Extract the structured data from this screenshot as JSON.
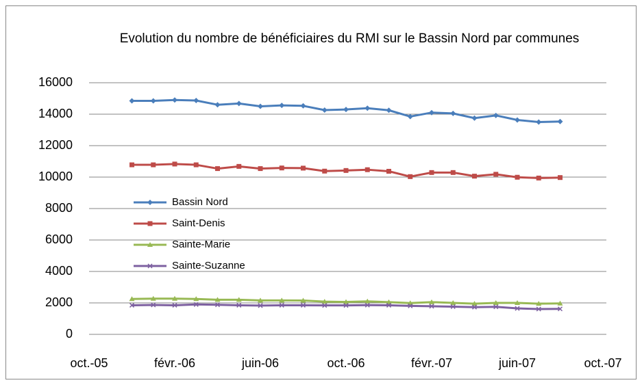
{
  "chart_data": {
    "type": "line",
    "title": "Evolution du nombre de bénéficiaires du RMI sur le Bassin Nord par communes",
    "x": [
      "2005-12",
      "2006-01",
      "2006-02",
      "2006-03",
      "2006-04",
      "2006-05",
      "2006-06",
      "2006-07",
      "2006-08",
      "2006-09",
      "2006-10",
      "2006-11",
      "2006-12",
      "2007-01",
      "2007-02",
      "2007-03",
      "2007-04",
      "2007-05",
      "2007-06",
      "2007-07",
      "2007-08"
    ],
    "xlim": [
      "2005-10",
      "2007-10"
    ],
    "xticks": [
      {
        "value": "2005-10",
        "label": "oct.-05"
      },
      {
        "value": "2006-02",
        "label": "févr.-06"
      },
      {
        "value": "2006-06",
        "label": "juin-06"
      },
      {
        "value": "2006-10",
        "label": "oct.-06"
      },
      {
        "value": "2007-02",
        "label": "févr.-07"
      },
      {
        "value": "2007-06",
        "label": "juin-07"
      },
      {
        "value": "2007-10",
        "label": "oct.-07"
      }
    ],
    "ylim": [
      0,
      16000
    ],
    "yticks": [
      0,
      2000,
      4000,
      6000,
      8000,
      10000,
      12000,
      14000,
      16000
    ],
    "grid": true,
    "legend": "left",
    "series": [
      {
        "name": "Bassin Nord",
        "color": "#4a7ebb",
        "marker": "diamond",
        "values": [
          14850,
          14850,
          14900,
          14870,
          14600,
          14680,
          14500,
          14560,
          14530,
          14260,
          14300,
          14380,
          14250,
          13850,
          14100,
          14050,
          13750,
          13920,
          13630,
          13500,
          13530
        ]
      },
      {
        "name": "Saint-Denis",
        "color": "#be4b48",
        "marker": "square",
        "values": [
          10780,
          10780,
          10830,
          10780,
          10540,
          10680,
          10540,
          10580,
          10570,
          10380,
          10420,
          10470,
          10370,
          10030,
          10290,
          10290,
          10060,
          10180,
          9990,
          9940,
          9970
        ]
      },
      {
        "name": "Sainte-Marie",
        "color": "#98b954",
        "marker": "triangle",
        "values": [
          2250,
          2270,
          2270,
          2250,
          2200,
          2200,
          2160,
          2160,
          2150,
          2080,
          2060,
          2100,
          2050,
          1990,
          2050,
          2000,
          1950,
          2000,
          2000,
          1950,
          1970
        ]
      },
      {
        "name": "Sainte-Suzanne",
        "color": "#7d60a0",
        "marker": "x",
        "values": [
          1850,
          1870,
          1850,
          1900,
          1880,
          1850,
          1830,
          1850,
          1850,
          1840,
          1840,
          1860,
          1850,
          1810,
          1790,
          1760,
          1730,
          1750,
          1650,
          1610,
          1620
        ]
      }
    ]
  }
}
